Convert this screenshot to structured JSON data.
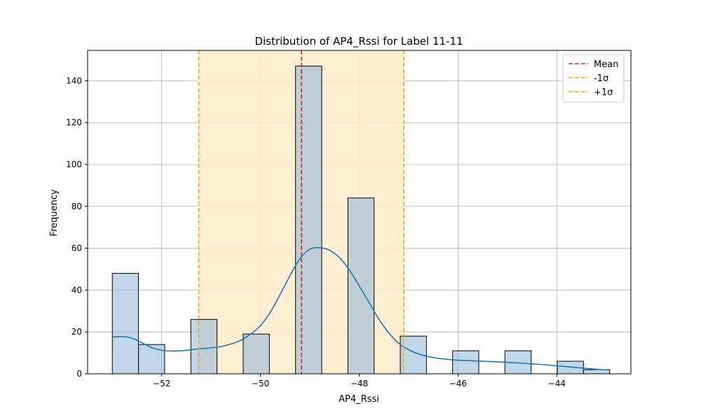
{
  "chart_data": {
    "type": "bar",
    "title": "Distribution of AP4_Rssi for Label 11-11",
    "xlabel": "AP4_Rssi",
    "ylabel": "Frequency",
    "xlim": [
      -53.5,
      -42.5
    ],
    "ylim": [
      0,
      154.5
    ],
    "xticks": [
      -52,
      -50,
      -48,
      -46,
      -44
    ],
    "xtick_labels": [
      "−52",
      "−50",
      "−48",
      "−46",
      "−44"
    ],
    "yticks": [
      0,
      20,
      40,
      60,
      80,
      100,
      120,
      140
    ],
    "ytick_labels": [
      "0",
      "20",
      "40",
      "60",
      "80",
      "100",
      "120",
      "140"
    ],
    "grid": true,
    "bins": [
      {
        "x0": -53.0,
        "x1": -52.47,
        "count": 48
      },
      {
        "x0": -52.47,
        "x1": -51.94,
        "count": 14
      },
      {
        "x0": -51.41,
        "x1": -50.88,
        "count": 26
      },
      {
        "x0": -50.35,
        "x1": -49.82,
        "count": 19
      },
      {
        "x0": -49.29,
        "x1": -48.76,
        "count": 147
      },
      {
        "x0": -48.23,
        "x1": -47.7,
        "count": 84
      },
      {
        "x0": -47.17,
        "x1": -46.64,
        "count": 18
      },
      {
        "x0": -46.11,
        "x1": -45.58,
        "count": 11
      },
      {
        "x0": -45.05,
        "x1": -44.52,
        "count": 11
      },
      {
        "x0": -43.99,
        "x1": -43.46,
        "count": 6
      },
      {
        "x0": -43.46,
        "x1": -42.93,
        "count": 2
      }
    ],
    "kde": {
      "x": [
        -53.0,
        -52.8,
        -52.6,
        -52.4,
        -52.2,
        -52.0,
        -51.8,
        -51.6,
        -51.4,
        -51.2,
        -51.0,
        -50.8,
        -50.6,
        -50.4,
        -50.2,
        -50.0,
        -49.8,
        -49.6,
        -49.4,
        -49.2,
        -49.0,
        -48.8,
        -48.6,
        -48.4,
        -48.2,
        -48.0,
        -47.8,
        -47.6,
        -47.4,
        -47.2,
        -47.0,
        -46.8,
        -46.6,
        -46.4,
        -46.2,
        -46.0,
        -45.6,
        -45.2,
        -44.8,
        -44.4,
        -44.0,
        -43.6,
        -43.2,
        -43.0
      ],
      "y": [
        17.5,
        17.8,
        17.0,
        14.8,
        12.5,
        11.2,
        10.9,
        11.0,
        11.5,
        12.0,
        12.4,
        13.0,
        14.2,
        16.0,
        19.0,
        23.0,
        29.5,
        38.0,
        47.0,
        55.0,
        59.5,
        60.2,
        59.0,
        55.5,
        49.5,
        42.0,
        34.0,
        26.0,
        19.5,
        14.5,
        11.5,
        9.5,
        8.2,
        7.4,
        6.9,
        6.5,
        6.1,
        5.7,
        5.2,
        4.6,
        3.8,
        3.0,
        2.2,
        1.9
      ]
    },
    "mean": -49.17,
    "minus_1sigma": -51.25,
    "plus_1sigma": -47.1,
    "legend": [
      {
        "label": "Mean",
        "color": "#d62728"
      },
      {
        "label": "-1σ",
        "color": "#ffa500"
      },
      {
        "label": "+1σ",
        "color": "#ffa500"
      }
    ],
    "legend_position": "top-right",
    "colors": {
      "bar_fill": "#8cb7d9",
      "bar_edge": "#000000",
      "kde_line": "#1f77b4",
      "span_fill": "#ffeccc",
      "mean_line": "#d62728",
      "sigma_line": "#ffa500",
      "grid": "#b0b0b0"
    }
  }
}
